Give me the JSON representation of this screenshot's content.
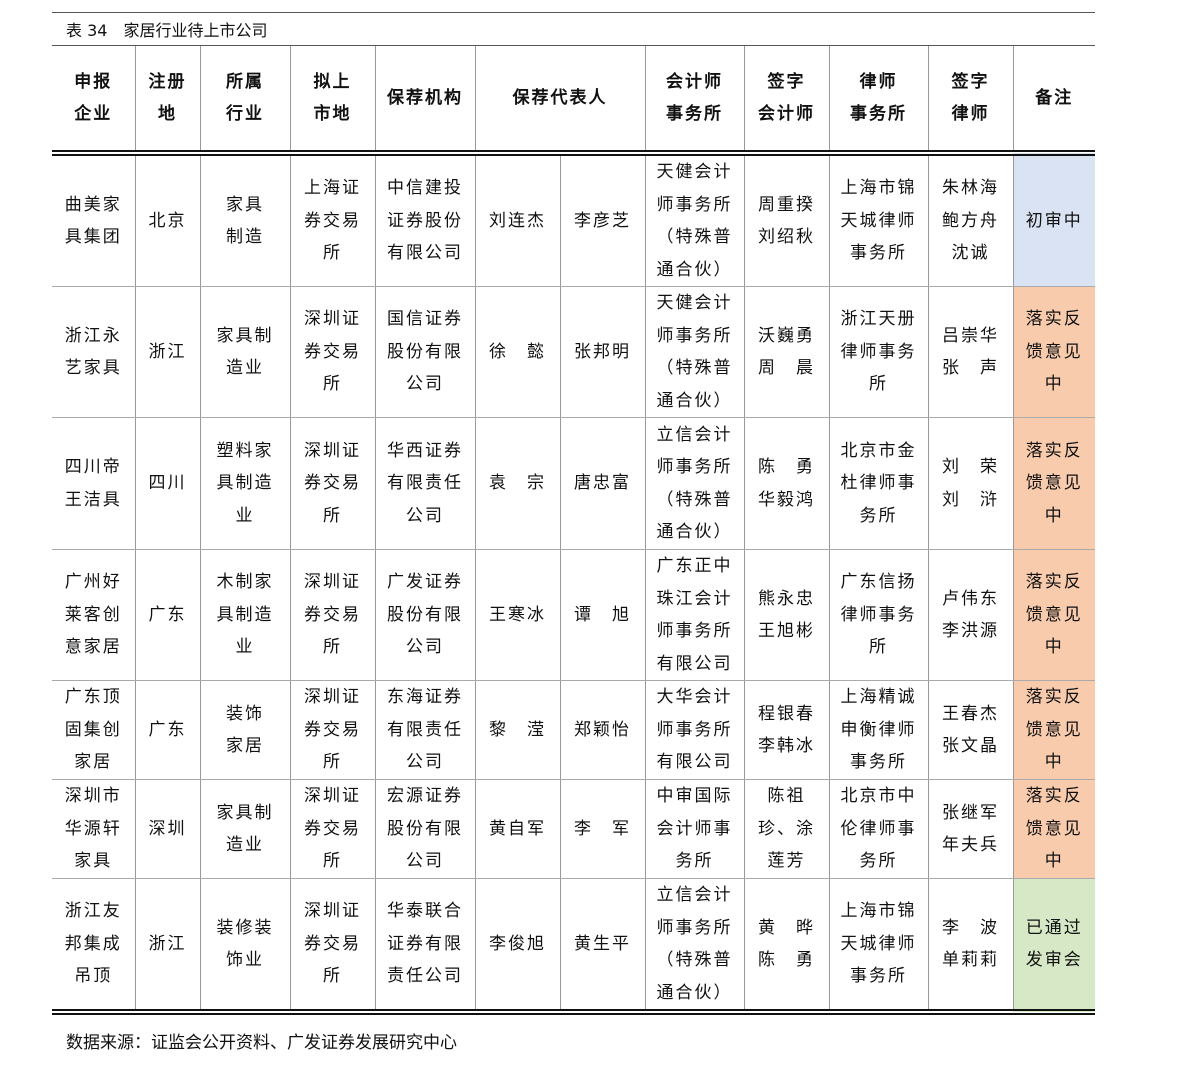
{
  "caption": "表 34　家居行业待上市公司",
  "table": {
    "header": [
      "申报\n企业",
      "注册\n地",
      "所属\n行业",
      "拟上\n市地",
      "保荐机构",
      "保荐代表人",
      "会计师\n事务所",
      "签字\n会计师",
      "律师\n事务所",
      "签字\n律师",
      "备注"
    ],
    "rows": [
      [
        "曲美家具集团",
        "北京",
        "家具\n制造",
        "上海证券交易所",
        "中信建投证券股份有限公司",
        "刘连杰",
        "李彦芝",
        "天健会计师事务所（特殊普通合伙）",
        "周重揆\n刘绍秋",
        "上海市锦天城律师事务所",
        "朱林海\n鲍方舟\n沈诚",
        "初审中"
      ],
      [
        "浙江永艺家具",
        "浙江",
        "家具制造业",
        "深圳证券交易所",
        "国信证券股份有限公司",
        "徐　懿",
        "张邦明",
        "天健会计师事务所（特殊普通合伙）",
        "沃巍勇\n周　晨",
        "浙江天册律师事务所",
        "吕崇华\n张　声",
        "落实反馈意见中"
      ],
      [
        "四川帝王洁具",
        "四川",
        "塑料家具制造业",
        "深圳证券交易所",
        "华西证券有限责任公司",
        "袁　宗",
        "唐忠富",
        "立信会计师事务所（特殊普通合伙）",
        "陈　勇\n华毅鸿",
        "北京市金杜律师事务所",
        "刘　荣\n刘　浒",
        "落实反馈意见中"
      ],
      [
        "广州好莱客创意家居",
        "广东",
        "木制家具制造业",
        "深圳证券交易所",
        "广发证券股份有限公司",
        "王寒冰",
        "谭　旭",
        "广东正中珠江会计师事务所有限公司",
        "熊永忠\n王旭彬",
        "广东信扬律师事务所",
        "卢伟东\n李洪源",
        "落实反馈意见中"
      ],
      [
        "广东顶固集创家居",
        "广东",
        "装饰\n家居",
        "深圳证券交易所",
        "东海证券有限责任公司",
        "黎　滢",
        "郑颖怡",
        "大华会计师事务所有限公司",
        "程银春\n李韩冰",
        "上海精诚申衡律师事务所",
        "王春杰\n张文晶",
        "落实反馈意见中"
      ],
      [
        "深圳市华源轩家具",
        "深圳",
        "家具制造业",
        "深圳证券交易所",
        "宏源证券股份有限公司",
        "黄自军",
        "李　军",
        "中审国际会计师事务所",
        "陈祖珍、涂莲芳",
        "北京市中伦律师事务所",
        "张继军\n年夫兵",
        "落实反馈意见中"
      ],
      [
        "浙江友邦集成吊顶",
        "浙江",
        "装修装饰业",
        "深圳证券交易所",
        "华泰联合证券有限责任公司",
        "李俊旭",
        "黄生平",
        "立信会计师事务所（特殊普通合伙）",
        "黄　晔\n陈　勇",
        "上海市锦天城律师事务所",
        "李　波\n单莉莉",
        "已通过发审会"
      ]
    ]
  },
  "source": "数据来源：证监会公开资料、广发证券发展研究中心"
}
